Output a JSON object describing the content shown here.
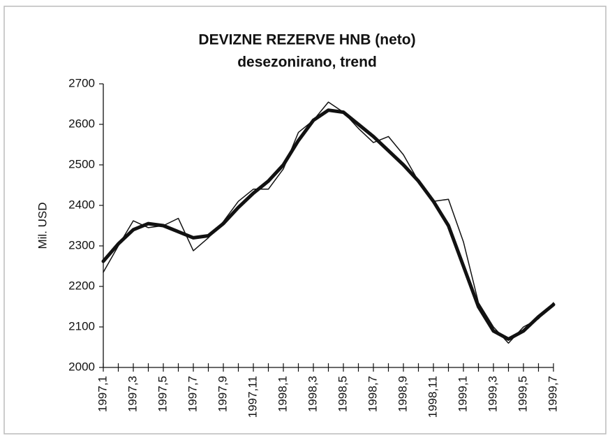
{
  "chart_data": {
    "type": "line",
    "title": "DEVIZNE REZERVE HNB  (neto)",
    "subtitle": "desezonirano, trend",
    "y_label": "Mil. USD",
    "categories": [
      "1997,1",
      null,
      "1997,3",
      null,
      "1997,5",
      null,
      "1997,7",
      null,
      "1997,9",
      null,
      "1997,11",
      null,
      "1998,1",
      null,
      "1998,3",
      null,
      "1998,5",
      null,
      "1998,7",
      null,
      "1998,9",
      null,
      "1998,11",
      null,
      "1999,1",
      null,
      "1999,3",
      null,
      "1999,5",
      null,
      "1999,7"
    ],
    "series": [
      {
        "color": "#111111",
        "line_width": 1.5,
        "values": [
          2235,
          2300,
          2362,
          2345,
          2350,
          2368,
          2288,
          2320,
          2360,
          2410,
          2440,
          2440,
          2490,
          2580,
          2610,
          2655,
          2630,
          2590,
          2555,
          2570,
          2525,
          2460,
          2410,
          2415,
          2310,
          2160,
          2100,
          2060,
          2100,
          2120,
          2160
        ]
      },
      {
        "color": "#111111",
        "line_width": 5,
        "values": [
          2262,
          2305,
          2340,
          2355,
          2350,
          2335,
          2320,
          2325,
          2355,
          2395,
          2430,
          2460,
          2500,
          2560,
          2610,
          2635,
          2630,
          2600,
          2570,
          2535,
          2500,
          2460,
          2410,
          2350,
          2250,
          2150,
          2090,
          2070,
          2090,
          2125,
          2155
        ]
      }
    ],
    "ylim": [
      2000,
      2700
    ],
    "yticks": [
      2000,
      2100,
      2200,
      2300,
      2400,
      2500,
      2600,
      2700
    ],
    "grid": false
  }
}
